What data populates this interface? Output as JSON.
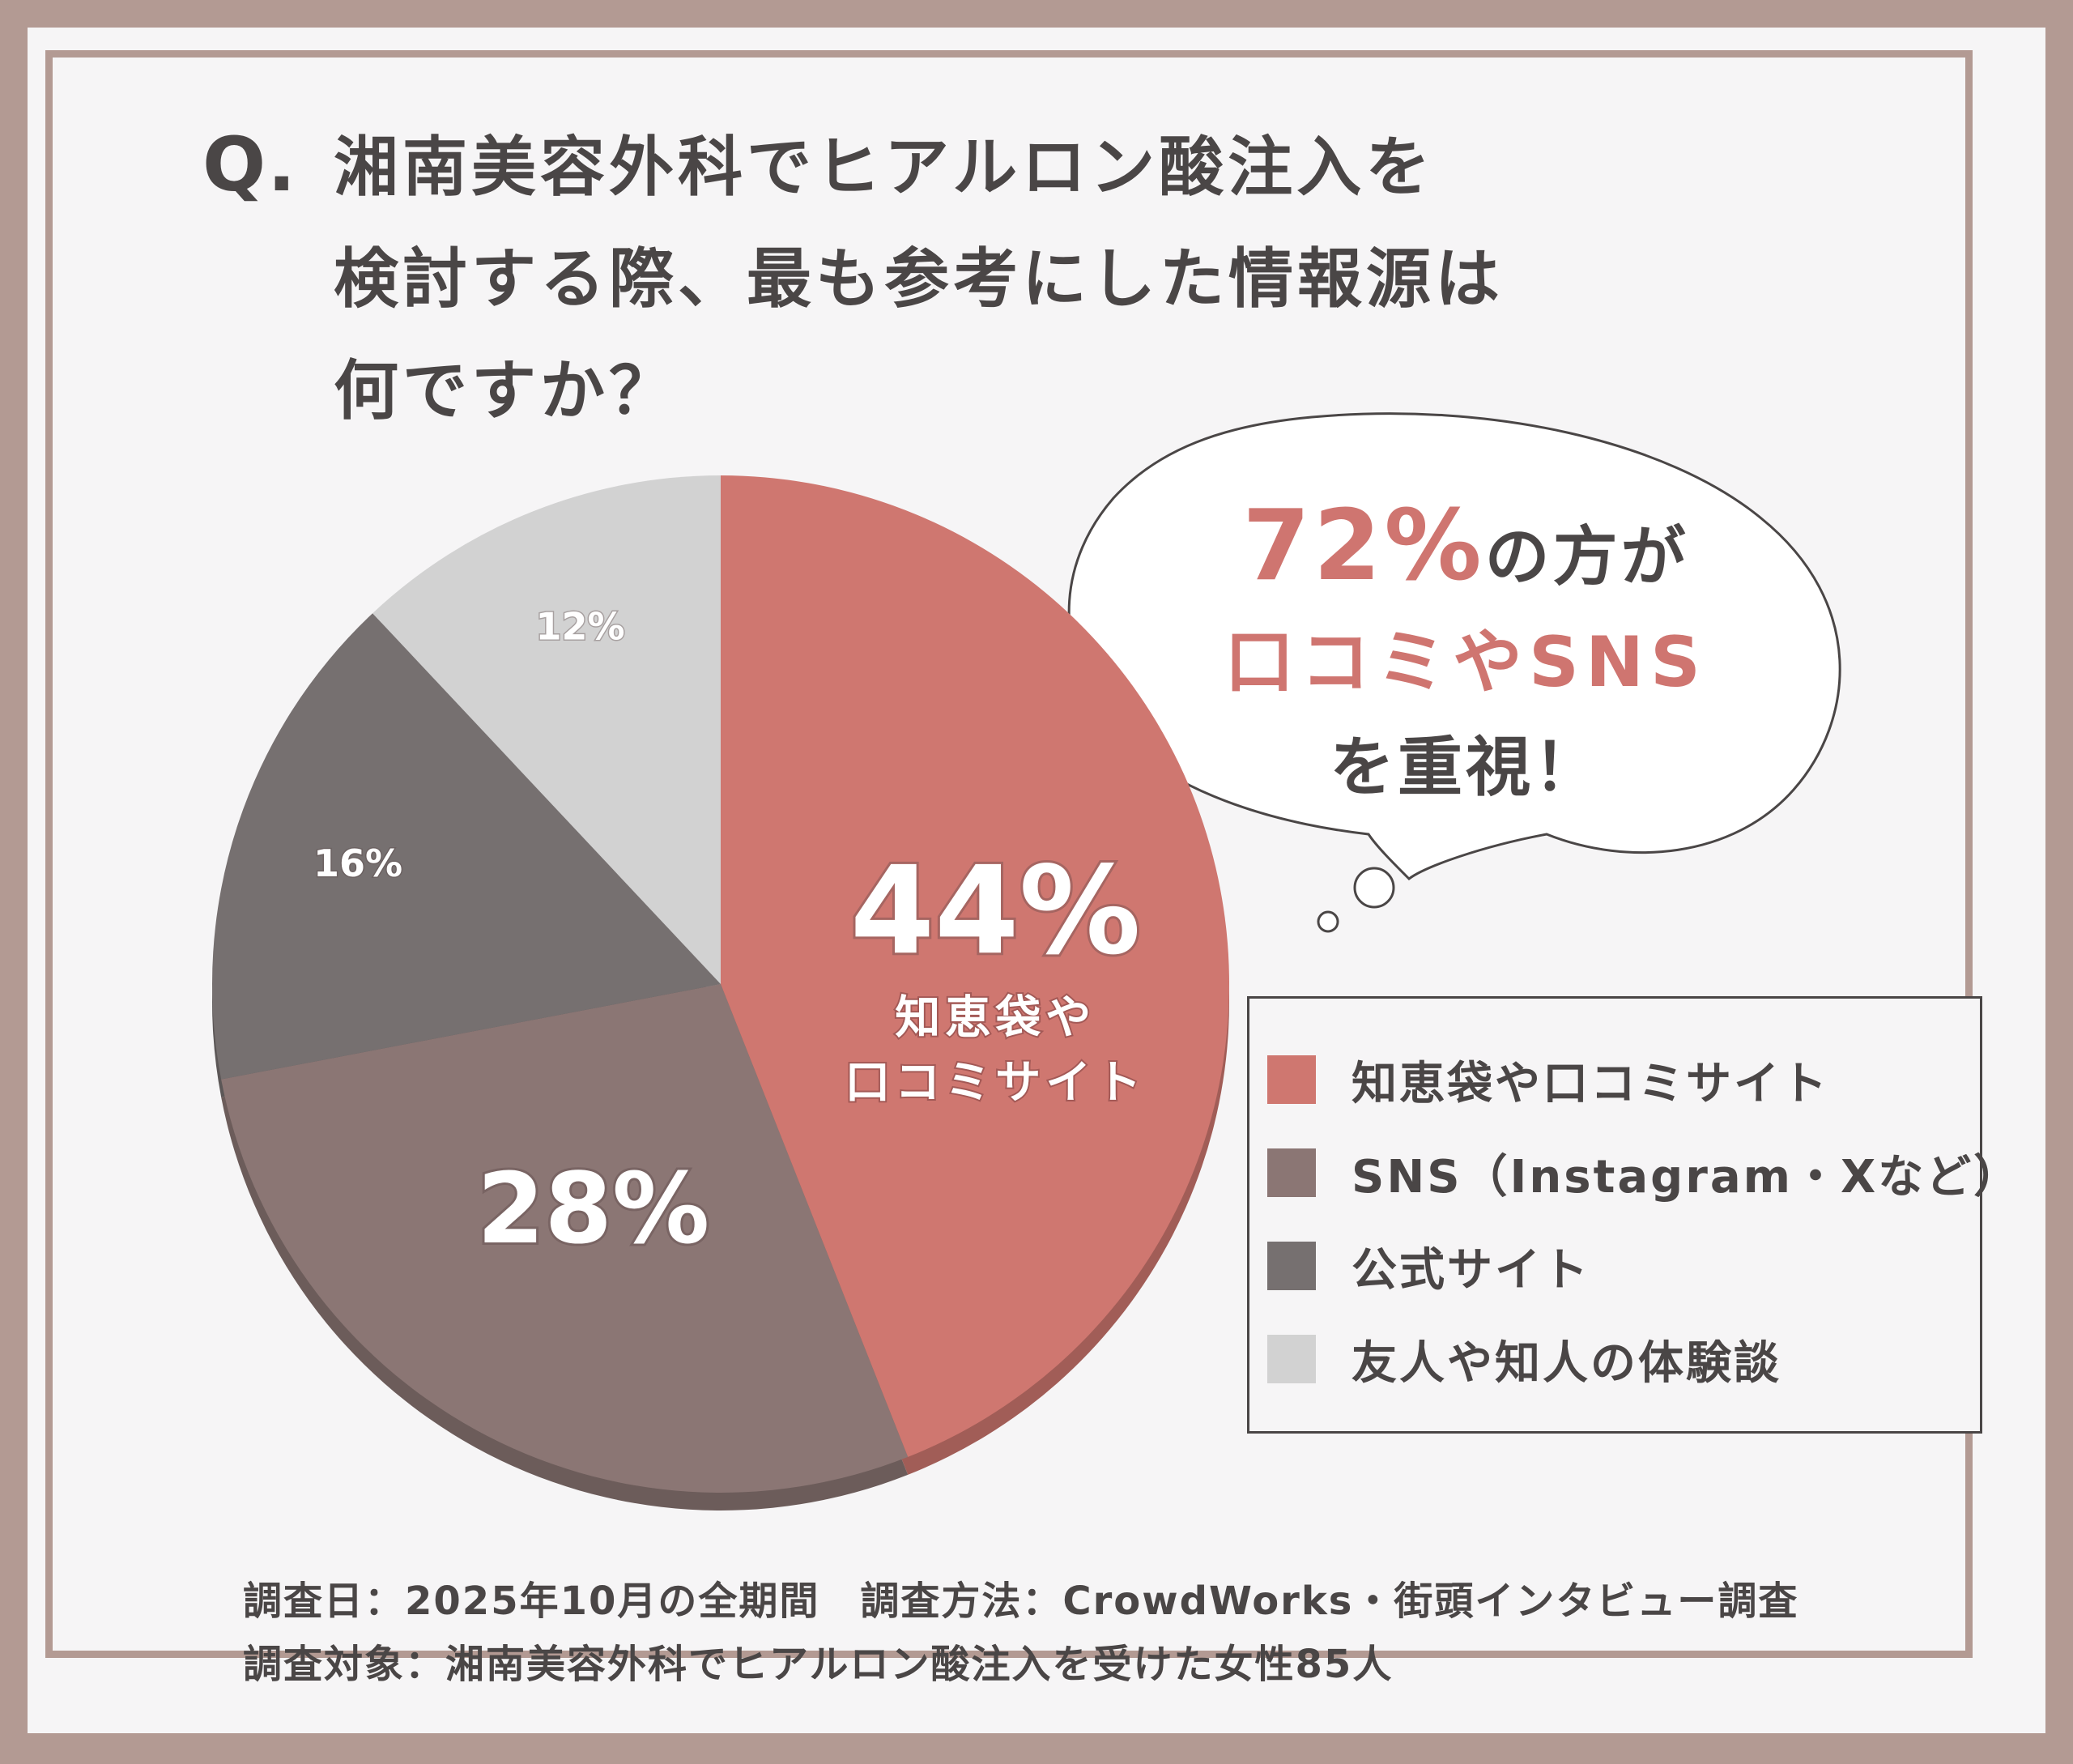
{
  "question": {
    "prefix": "Q.",
    "lines": [
      "湘南美容外科でヒアルロン酸注入を",
      "検討する際、最も参考にした情報源は",
      "何ですか？"
    ]
  },
  "callout": {
    "pct": "72%",
    "line1_suffix": "の方が",
    "line2": "口コミやSNS",
    "line3": "を重視！"
  },
  "chart_data": {
    "type": "pie",
    "categories": [
      "知恵袋や口コミサイト",
      "SNS（Instagram・Xなど）",
      "公式サイト",
      "友人や知人の体験談"
    ],
    "values": [
      44,
      28,
      16,
      12
    ],
    "data_labels": [
      "44%",
      "28%",
      "16%",
      "12%"
    ],
    "slice_inner_label": "知恵袋や\n口コミサイト",
    "colors": [
      "#cf7770",
      "#8b7674",
      "#767070",
      "#d2d2d2"
    ],
    "legend_position": "right"
  },
  "footer": {
    "line1": "調査日：2025年10月の全期間　調査方法：CrowdWorks・街頭インタビュー調査",
    "line2": "調査対象：湘南美容外科でヒアルロン酸注入を受けた女性85人"
  }
}
